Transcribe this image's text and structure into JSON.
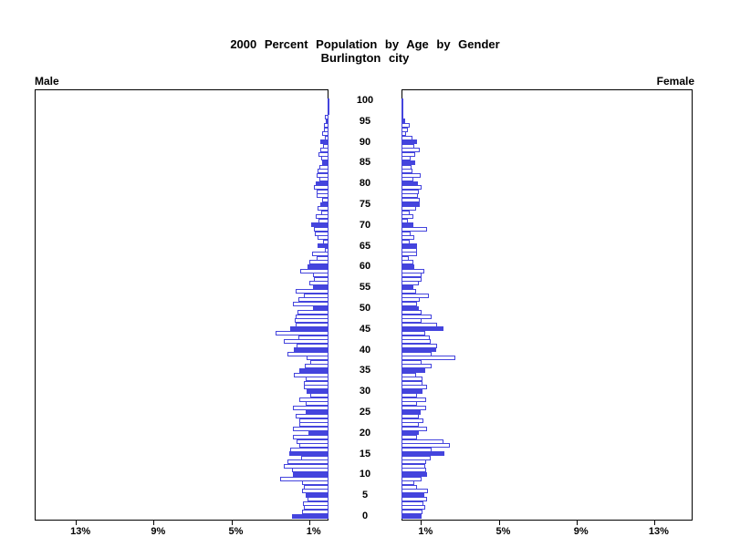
{
  "title": {
    "line1": "2000 Percent Population by Age by Gender",
    "line2": "Burlington city"
  },
  "labels": {
    "male": "Male",
    "female": "Female"
  },
  "colors": {
    "bar_blue": "#4444DD",
    "axis_black": "#000000",
    "background": "#FFFFFF"
  },
  "axes": {
    "age_tick_labels": [
      "0",
      "5",
      "10",
      "15",
      "20",
      "25",
      "30",
      "35",
      "40",
      "45",
      "50",
      "55",
      "60",
      "65",
      "70",
      "75",
      "80",
      "85",
      "90",
      "95",
      "100"
    ],
    "age_tick_values": [
      0,
      5,
      10,
      15,
      20,
      25,
      30,
      35,
      40,
      45,
      50,
      55,
      60,
      65,
      70,
      75,
      80,
      85,
      90,
      95,
      100
    ],
    "male_pct_tick_labels": [
      "13%",
      "9%",
      "5%",
      "1%"
    ],
    "male_pct_tick_values": [
      13,
      9,
      5,
      1
    ],
    "female_pct_tick_labels": [
      "1%",
      "5%",
      "9%",
      "13%"
    ],
    "female_pct_tick_values": [
      1,
      5,
      9,
      13
    ]
  },
  "chart_data": {
    "type": "bar",
    "subtype": "population-pyramid",
    "title": "2000 Percent Population by Age by Gender",
    "subtitle": "Burlington city",
    "value_axis": "percent of total population (%)",
    "category_axis": "age in single years, 0 at bottom to 100 at top",
    "age_min": 0,
    "age_max": 100,
    "xlim_each_side": [
      0,
      15
    ],
    "grid": false,
    "legend": false,
    "filled_bar_rule": "bars for ages divisible by 5 are solid blue; all other ages are white with blue outline",
    "male_axis_direction": "increases right-to-left",
    "female_axis_direction": "increases left-to-right",
    "series": [
      {
        "name": "Male",
        "values_by_age": [
          1.88,
          1.36,
          1.27,
          1.33,
          1.09,
          1.17,
          1.38,
          1.27,
          1.38,
          2.47,
          1.85,
          1.88,
          2.31,
          2.13,
          1.41,
          2.0,
          1.96,
          1.5,
          1.64,
          1.85,
          1.03,
          1.83,
          1.5,
          1.5,
          1.69,
          1.17,
          1.82,
          1.19,
          1.49,
          0.95,
          1.11,
          1.27,
          1.27,
          1.17,
          1.77,
          1.5,
          1.22,
          0.95,
          1.13,
          2.13,
          1.8,
          1.64,
          2.29,
          1.54,
          2.74,
          1.97,
          1.69,
          1.74,
          1.69,
          1.58,
          0.78,
          1.84,
          1.55,
          1.25,
          1.68,
          0.78,
          0.97,
          0.75,
          0.78,
          1.45,
          1.08,
          0.97,
          0.6,
          0.86,
          0.19,
          0.55,
          0.28,
          0.55,
          0.72,
          0.75,
          0.88,
          0.53,
          0.64,
          0.36,
          0.56,
          0.44,
          0.33,
          0.6,
          0.61,
          0.75,
          0.66,
          0.47,
          0.61,
          0.56,
          0.47,
          0.33,
          0.38,
          0.5,
          0.41,
          0.3,
          0.44,
          0.19,
          0.33,
          0.22,
          0.22,
          0.13,
          0.2,
          0.05,
          0.03,
          0.03,
          0.05
        ]
      },
      {
        "name": "Female",
        "values_by_age": [
          1.02,
          1.07,
          1.22,
          1.13,
          1.33,
          1.17,
          1.38,
          0.81,
          0.66,
          1.02,
          1.33,
          1.27,
          1.22,
          1.28,
          1.52,
          2.22,
          1.56,
          2.5,
          2.16,
          0.78,
          0.89,
          1.33,
          0.91,
          1.13,
          0.91,
          0.97,
          1.25,
          0.81,
          1.28,
          0.78,
          1.09,
          1.33,
          1.07,
          1.07,
          0.75,
          1.22,
          1.54,
          1.02,
          2.76,
          1.54,
          1.77,
          1.85,
          1.49,
          1.44,
          1.22,
          2.16,
          1.85,
          1.02,
          1.54,
          1.02,
          0.91,
          0.81,
          0.94,
          1.41,
          0.75,
          0.6,
          0.91,
          1.05,
          1.02,
          1.17,
          0.66,
          0.62,
          0.39,
          0.78,
          0.78,
          0.78,
          0.44,
          0.66,
          0.47,
          1.31,
          0.6,
          0.34,
          0.6,
          0.44,
          0.75,
          0.94,
          0.94,
          0.86,
          0.91,
          1.02,
          0.86,
          0.61,
          0.97,
          0.56,
          0.5,
          0.7,
          0.47,
          0.69,
          0.94,
          0.66,
          0.78,
          0.55,
          0.25,
          0.34,
          0.41,
          0.19,
          0.09,
          0.02,
          0.02,
          0.0,
          0.09
        ]
      }
    ]
  }
}
